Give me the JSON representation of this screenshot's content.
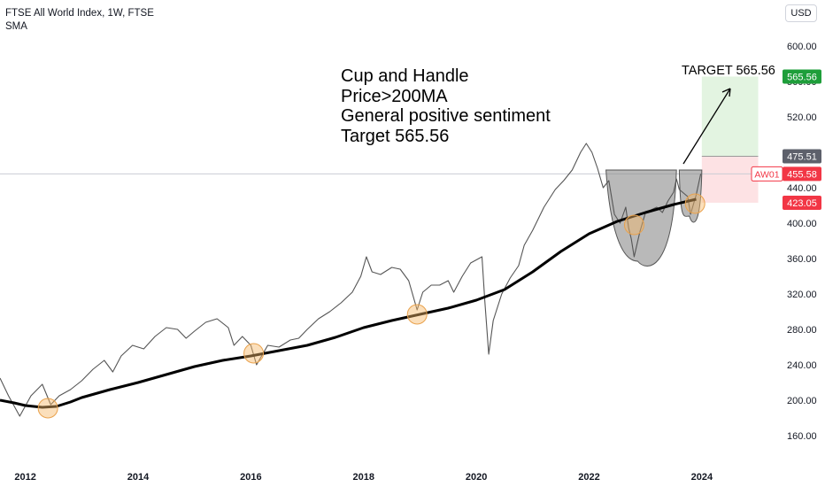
{
  "header": {
    "title": "FTSE All World Index, 1W, FTSE",
    "indicator": "SMA",
    "currency": "USD"
  },
  "annotation": {
    "lines": [
      "Cup and Handle",
      "Price>200MA",
      "General positive sentiment",
      "Target 565.56"
    ],
    "target_label": "TARGET 565.56"
  },
  "colors": {
    "price": "#555555",
    "sma": "#000000",
    "profit_zone": "#e3f4e1",
    "loss_zone": "#fde2e4",
    "cup": "#8a8a8a",
    "touch_circle": "#f7b968",
    "target_badge": "#1e9e3a",
    "stop_badge": "#f23645",
    "entry_badge": "#5d606b"
  },
  "chart_data": {
    "type": "line",
    "x_ticks": [
      "2012",
      "2014",
      "2016",
      "2018",
      "2020",
      "2022",
      "2024"
    ],
    "y_ticks": [
      160,
      200,
      240,
      280,
      320,
      360,
      400,
      440,
      480,
      520,
      560,
      600
    ],
    "y_tick_labels": [
      "160.00",
      "200.00",
      "240.00",
      "280.00",
      "320.00",
      "360.00",
      "400.00",
      "440.00",
      "480.00",
      "520.00",
      "560.00",
      "600.00"
    ],
    "ylim": [
      132,
      612
    ],
    "xlim": [
      2011.55,
      2025.4
    ],
    "series": [
      {
        "name": "AW01",
        "style": "price",
        "points": [
          [
            2011.55,
            225
          ],
          [
            2011.7,
            205
          ],
          [
            2011.9,
            182
          ],
          [
            2012.1,
            205
          ],
          [
            2012.3,
            218
          ],
          [
            2012.45,
            195
          ],
          [
            2012.6,
            205
          ],
          [
            2012.8,
            212
          ],
          [
            2013.0,
            222
          ],
          [
            2013.2,
            235
          ],
          [
            2013.4,
            245
          ],
          [
            2013.55,
            232
          ],
          [
            2013.7,
            250
          ],
          [
            2013.9,
            262
          ],
          [
            2014.1,
            258
          ],
          [
            2014.3,
            272
          ],
          [
            2014.5,
            282
          ],
          [
            2014.7,
            280
          ],
          [
            2014.85,
            270
          ],
          [
            2015.0,
            278
          ],
          [
            2015.2,
            288
          ],
          [
            2015.4,
            292
          ],
          [
            2015.6,
            282
          ],
          [
            2015.7,
            262
          ],
          [
            2015.85,
            272
          ],
          [
            2016.0,
            262
          ],
          [
            2016.1,
            240
          ],
          [
            2016.3,
            262
          ],
          [
            2016.5,
            260
          ],
          [
            2016.7,
            268
          ],
          [
            2016.85,
            270
          ],
          [
            2017.0,
            280
          ],
          [
            2017.2,
            292
          ],
          [
            2017.4,
            300
          ],
          [
            2017.6,
            310
          ],
          [
            2017.8,
            322
          ],
          [
            2017.95,
            340
          ],
          [
            2018.05,
            362
          ],
          [
            2018.15,
            345
          ],
          [
            2018.3,
            342
          ],
          [
            2018.5,
            350
          ],
          [
            2018.65,
            348
          ],
          [
            2018.8,
            335
          ],
          [
            2018.95,
            302
          ],
          [
            2019.05,
            322
          ],
          [
            2019.2,
            330
          ],
          [
            2019.35,
            330
          ],
          [
            2019.5,
            335
          ],
          [
            2019.6,
            322
          ],
          [
            2019.75,
            340
          ],
          [
            2019.9,
            355
          ],
          [
            2020.1,
            362
          ],
          [
            2020.15,
            312
          ],
          [
            2020.22,
            252
          ],
          [
            2020.3,
            290
          ],
          [
            2020.45,
            320
          ],
          [
            2020.6,
            338
          ],
          [
            2020.75,
            352
          ],
          [
            2020.85,
            375
          ],
          [
            2021.0,
            392
          ],
          [
            2021.2,
            418
          ],
          [
            2021.4,
            438
          ],
          [
            2021.55,
            448
          ],
          [
            2021.7,
            460
          ],
          [
            2021.85,
            480
          ],
          [
            2021.95,
            490
          ],
          [
            2022.05,
            480
          ],
          [
            2022.15,
            462
          ],
          [
            2022.25,
            440
          ],
          [
            2022.35,
            448
          ],
          [
            2022.45,
            410
          ],
          [
            2022.55,
            400
          ],
          [
            2022.65,
            418
          ],
          [
            2022.7,
            395
          ],
          [
            2022.75,
            382
          ],
          [
            2022.8,
            362
          ],
          [
            2022.9,
            390
          ],
          [
            2023.0,
            412
          ],
          [
            2023.1,
            415
          ],
          [
            2023.2,
            418
          ],
          [
            2023.3,
            412
          ],
          [
            2023.4,
            425
          ],
          [
            2023.5,
            435
          ],
          [
            2023.55,
            450
          ],
          [
            2023.6,
            438
          ],
          [
            2023.75,
            430
          ],
          [
            2023.8,
            410
          ],
          [
            2023.9,
            432
          ],
          [
            2023.98,
            455.58
          ]
        ]
      },
      {
        "name": "SMA",
        "style": "ma",
        "points": [
          [
            2011.55,
            200
          ],
          [
            2011.8,
            197
          ],
          [
            2012.0,
            194
          ],
          [
            2012.3,
            192
          ],
          [
            2012.55,
            193
          ],
          [
            2012.8,
            198
          ],
          [
            2013.0,
            203
          ],
          [
            2013.5,
            212
          ],
          [
            2014.0,
            220
          ],
          [
            2014.5,
            229
          ],
          [
            2015.0,
            238
          ],
          [
            2015.5,
            245
          ],
          [
            2016.0,
            250
          ],
          [
            2016.5,
            256
          ],
          [
            2017.0,
            262
          ],
          [
            2017.5,
            271
          ],
          [
            2018.0,
            282
          ],
          [
            2018.5,
            290
          ],
          [
            2019.0,
            297
          ],
          [
            2019.5,
            304
          ],
          [
            2020.0,
            313
          ],
          [
            2020.5,
            325
          ],
          [
            2021.0,
            345
          ],
          [
            2021.5,
            368
          ],
          [
            2022.0,
            388
          ],
          [
            2022.5,
            402
          ],
          [
            2023.0,
            412
          ],
          [
            2023.5,
            421
          ],
          [
            2023.9,
            427
          ]
        ]
      }
    ],
    "cup_and_handle": {
      "rim": 460,
      "cup": {
        "start": 2022.3,
        "end": 2023.55,
        "bottom": 357
      },
      "handle": {
        "start": 2023.6,
        "end": 2024.0,
        "bottom": 408
      }
    },
    "sma_touches": [
      [
        2012.4,
        191
      ],
      [
        2016.05,
        253
      ],
      [
        2018.95,
        297
      ],
      [
        2022.8,
        398
      ],
      [
        2023.88,
        422
      ]
    ],
    "position": {
      "entry": 475.51,
      "target": 565.56,
      "stop": 423.05,
      "start": 2024.0,
      "end": 2025.0
    },
    "badges": {
      "target": "565.56",
      "entry": "475.51",
      "symbol": "AW01",
      "last_price": "455.58",
      "stop": "423.05"
    },
    "last_price": 455.58
  }
}
